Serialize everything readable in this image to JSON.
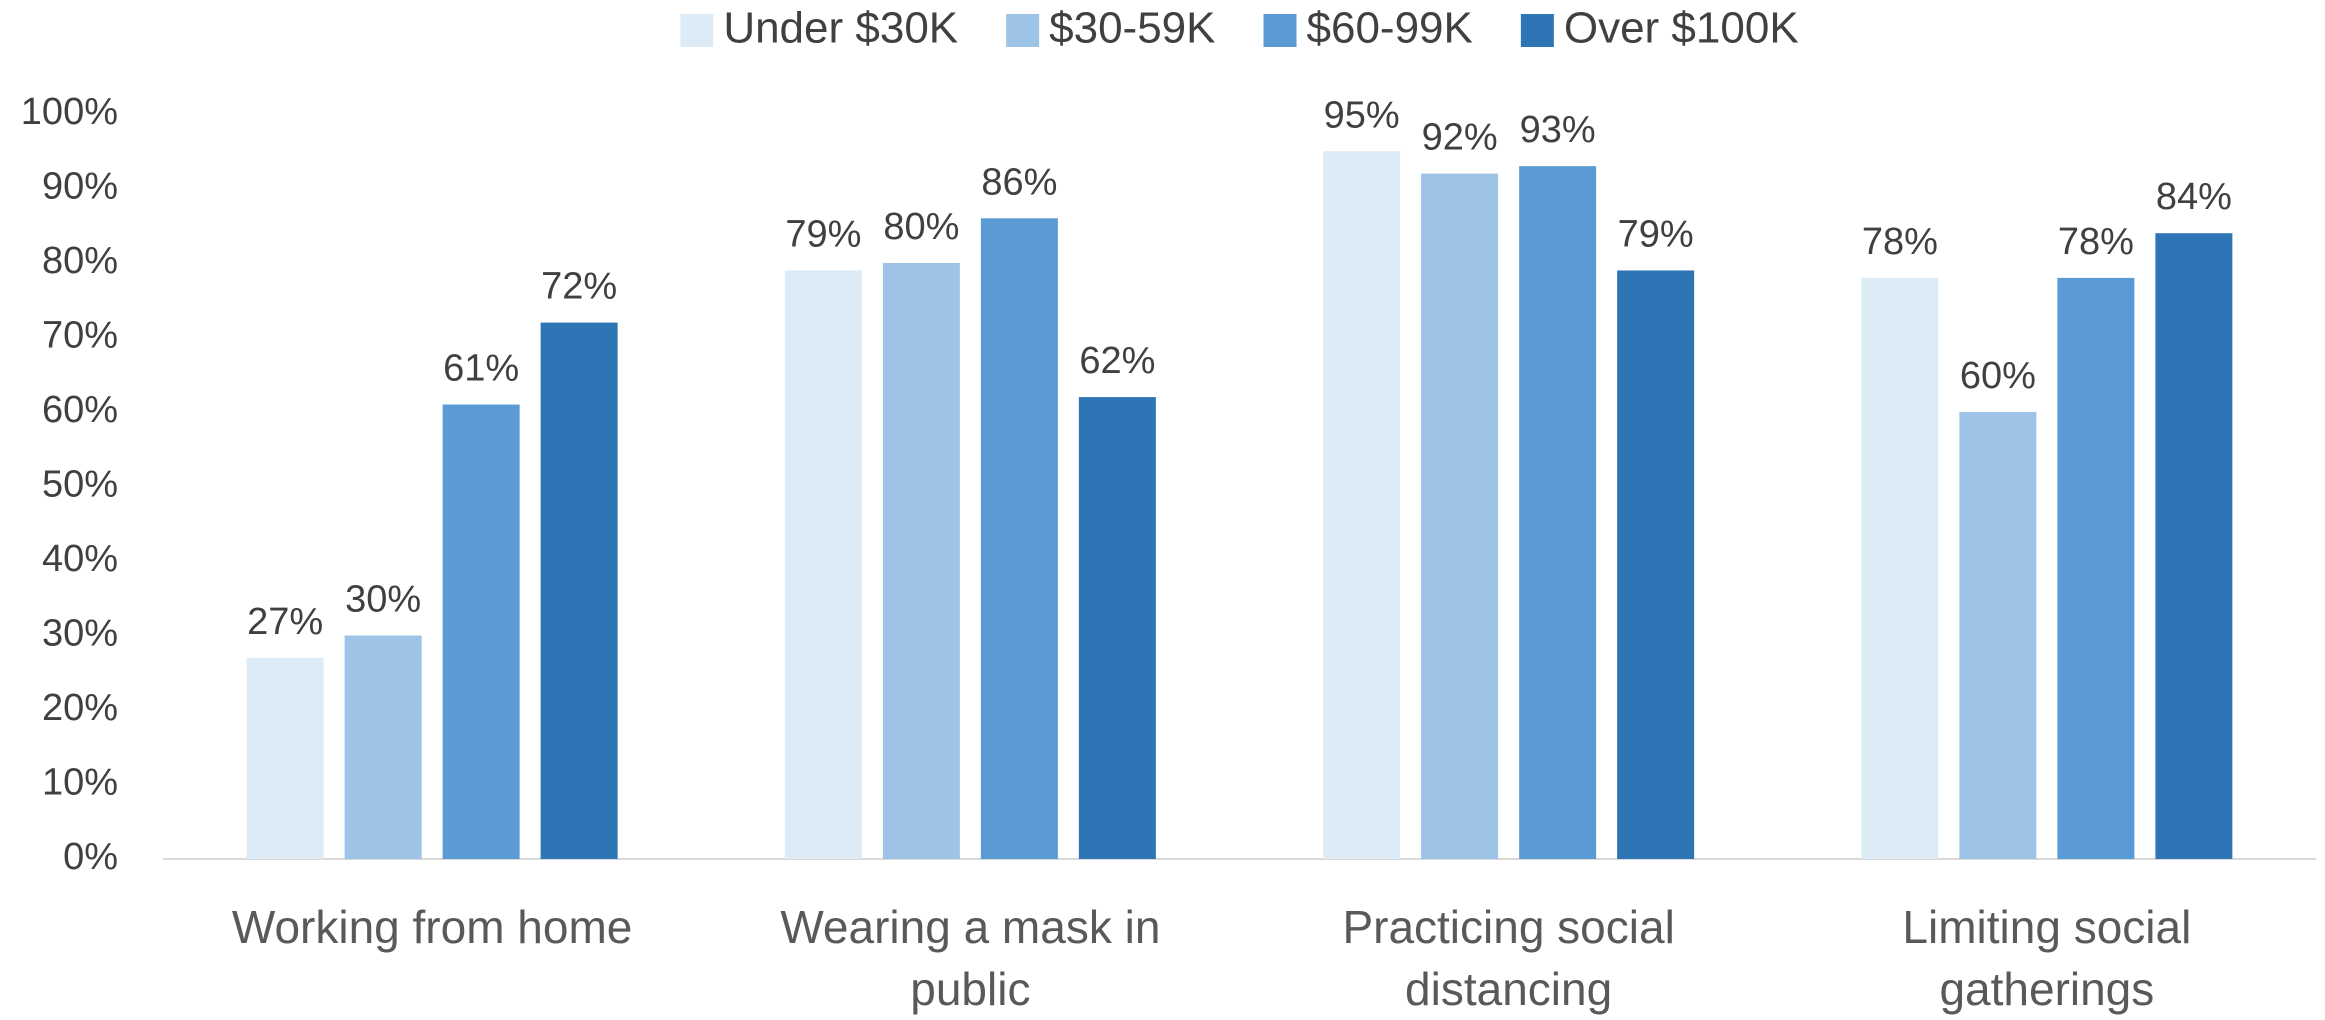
{
  "chart_data": {
    "type": "bar",
    "categories": [
      "Working from home",
      "Wearing a mask in public",
      "Practicing social distancing",
      "Limiting social gatherings"
    ],
    "series": [
      {
        "name": "Under $30K",
        "color": "#ddebf7",
        "values": [
          27,
          79,
          95,
          78
        ],
        "value_labels": [
          "27%",
          "79%",
          "95%",
          "78%"
        ]
      },
      {
        "name": "$30-59K",
        "color": "#9dc3e6",
        "values": [
          30,
          80,
          92,
          60
        ],
        "value_labels": [
          "30%",
          "80%",
          "92%",
          "60%"
        ]
      },
      {
        "name": "$60-99K",
        "color": "#5b9bd5",
        "values": [
          61,
          86,
          93,
          78
        ],
        "value_labels": [
          "61%",
          "86%",
          "93%",
          "78%"
        ]
      },
      {
        "name": "Over $100K",
        "color": "#2e75b6",
        "values": [
          72,
          62,
          79,
          84
        ],
        "value_labels": [
          "72%",
          "62%",
          "79%",
          "84%"
        ]
      }
    ],
    "ylim": [
      0,
      100
    ],
    "yticks": [
      {
        "value": 0,
        "label": "0%"
      },
      {
        "value": 10,
        "label": "10%"
      },
      {
        "value": 20,
        "label": "20%"
      },
      {
        "value": 30,
        "label": "30%"
      },
      {
        "value": 40,
        "label": "40%"
      },
      {
        "value": 50,
        "label": "50%"
      },
      {
        "value": 60,
        "label": "60%"
      },
      {
        "value": 70,
        "label": "70%"
      },
      {
        "value": 80,
        "label": "80%"
      },
      {
        "value": 90,
        "label": "90%"
      },
      {
        "value": 100,
        "label": "100%"
      }
    ],
    "grid": false,
    "legend": "top"
  }
}
